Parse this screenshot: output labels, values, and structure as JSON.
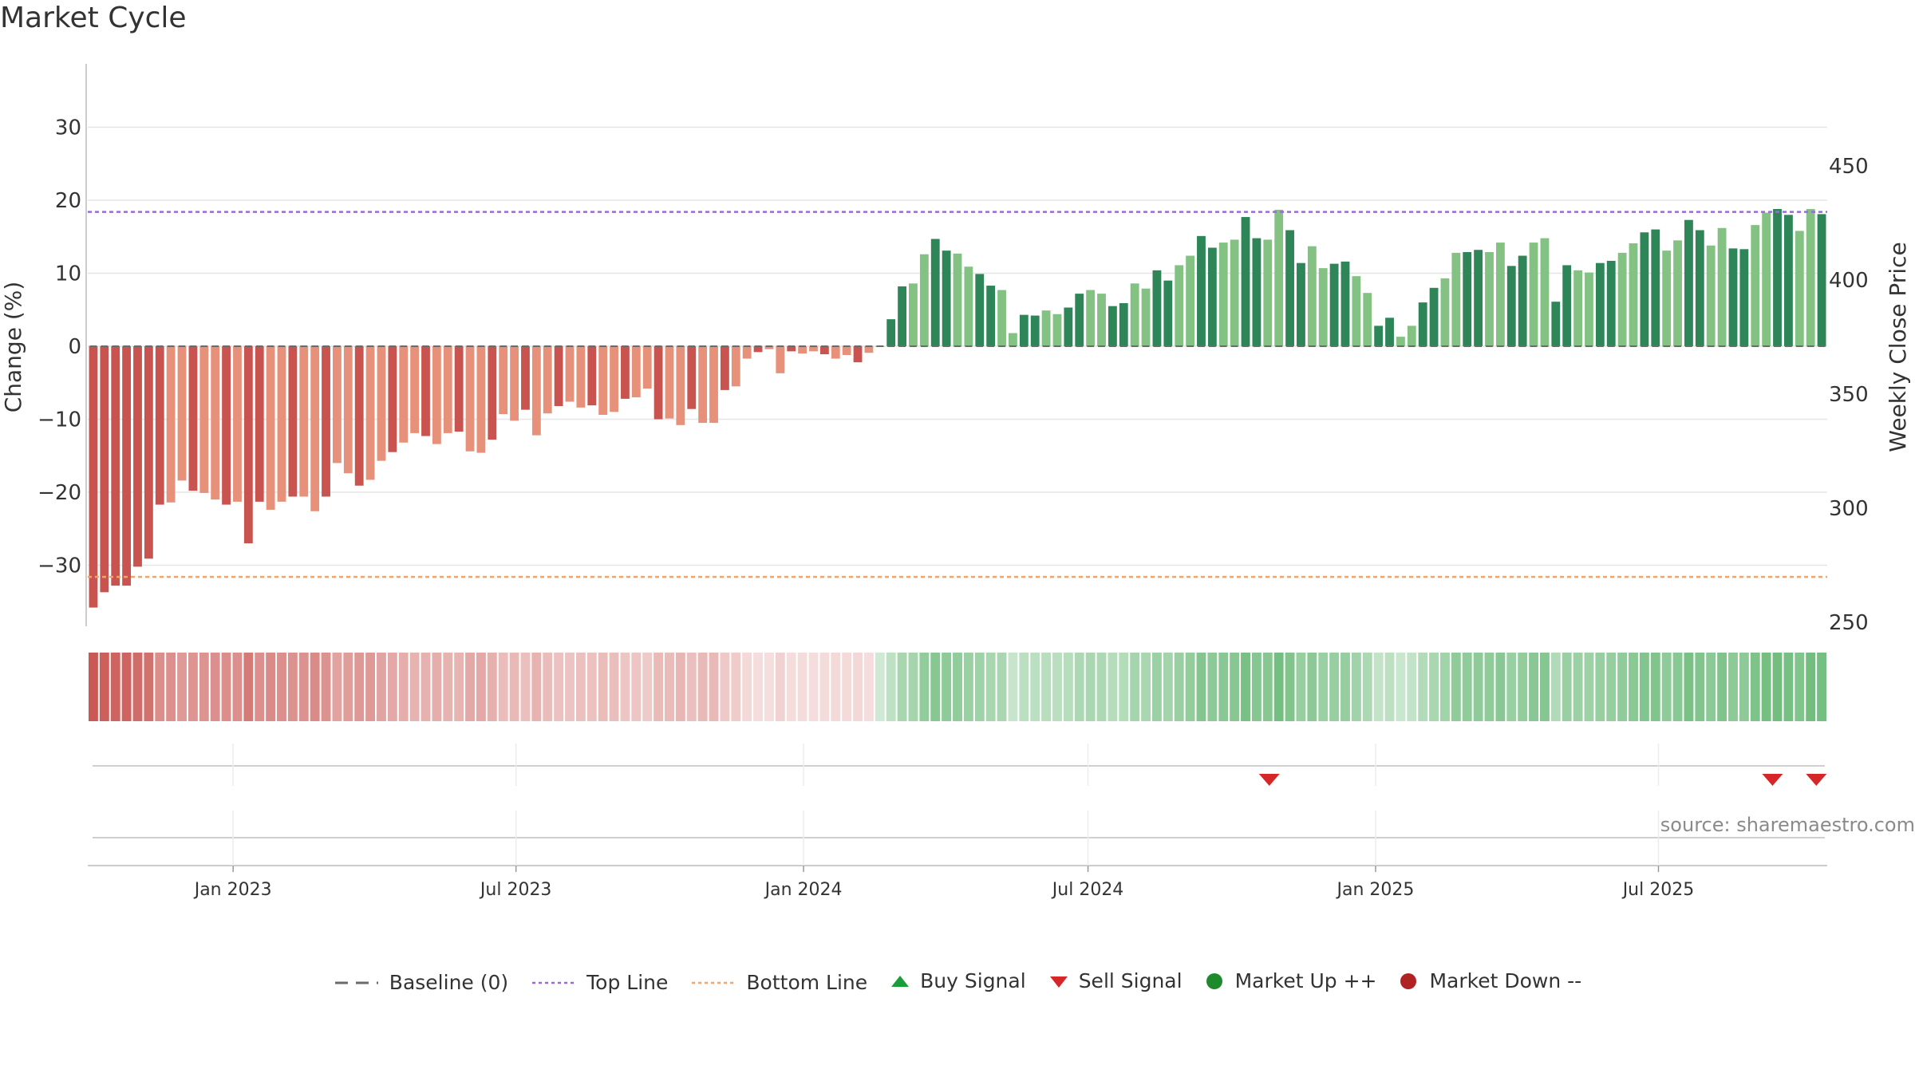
{
  "title": "Market Cycle",
  "source_text": "source: sharemaestro.com",
  "colors": {
    "down_dark": "#c9544f",
    "down_light": "#e8917a",
    "up_dark": "#2e8557",
    "up_light": "#84c283",
    "top_line": "#9b6ad6",
    "bottom_line": "#f0a46a",
    "baseline": "#6b6b6b",
    "buy": "#1a9e3a",
    "sell": "#d62728",
    "market_up": "#1f8a2b",
    "market_down": "#b22222"
  },
  "legend": [
    {
      "label": "Baseline (0)",
      "symbol": "dash",
      "color": "#6b6b6b"
    },
    {
      "label": "Top Line",
      "symbol": "dot",
      "color": "#9b6ad6"
    },
    {
      "label": "Bottom Line",
      "symbol": "dot",
      "color": "#f0a46a"
    },
    {
      "label": "Buy Signal",
      "symbol": "triangle-up",
      "color": "#1a9e3a"
    },
    {
      "label": "Sell Signal",
      "symbol": "triangle-down",
      "color": "#d62728"
    },
    {
      "label": "Market Up ++",
      "symbol": "circle",
      "color": "#1f8a2b"
    },
    {
      "label": "Market Down --",
      "symbol": "circle",
      "color": "#b22222"
    }
  ],
  "chart_data": {
    "type": "bar",
    "ylabel": "Change (%)",
    "y2label": "Weekly Close Price",
    "ylim": [
      -39,
      39
    ],
    "yticks": [
      30,
      20,
      10,
      0,
      -10,
      -20,
      -30
    ],
    "y2ticks": [
      450,
      400,
      350,
      300,
      250
    ],
    "top_line": 18.4,
    "bottom_line": -31.6,
    "x_start": "2022-09-30",
    "x_end": "2025-10-17",
    "xticks": [
      {
        "date": "2023-01-01",
        "label": "Jan 2023"
      },
      {
        "date": "2023-07-01",
        "label": "Jul 2023"
      },
      {
        "date": "2024-01-01",
        "label": "Jan 2024"
      },
      {
        "date": "2024-07-01",
        "label": "Jul 2024"
      },
      {
        "date": "2025-01-01",
        "label": "Jan 2025"
      },
      {
        "date": "2025-07-01",
        "label": "Jul 2025"
      }
    ],
    "values": [
      -35.8,
      -33.7,
      -32.8,
      -32.8,
      -30.2,
      -29.1,
      -21.7,
      -21.4,
      -18.4,
      -19.8,
      -20.1,
      -21.0,
      -21.7,
      -21.3,
      -27.0,
      -21.3,
      -22.4,
      -21.3,
      -20.6,
      -20.6,
      -22.6,
      -20.6,
      -16.0,
      -17.4,
      -19.1,
      -18.3,
      -15.7,
      -14.5,
      -13.2,
      -11.9,
      -12.3,
      -13.4,
      -11.9,
      -11.7,
      -14.4,
      -14.6,
      -12.8,
      -9.3,
      -10.2,
      -8.7,
      -12.2,
      -9.2,
      -8.2,
      -7.6,
      -8.4,
      -8.1,
      -9.4,
      -9.0,
      -7.2,
      -7.0,
      -5.8,
      -10.0,
      -9.9,
      -10.8,
      -8.6,
      -10.5,
      -10.5,
      -6.0,
      -5.5,
      -1.7,
      -0.8,
      -0.4,
      -3.7,
      -0.7,
      -1.0,
      -0.7,
      -1.1,
      -1.7,
      -1.2,
      -2.2,
      -0.9,
      0.0,
      3.7,
      8.2,
      8.6,
      12.6,
      14.7,
      13.1,
      12.7,
      10.9,
      9.9,
      8.3,
      7.7,
      1.8,
      4.3,
      4.2,
      4.9,
      4.4,
      5.3,
      7.2,
      7.7,
      7.2,
      5.5,
      5.9,
      8.6,
      7.9,
      10.4,
      9.0,
      11.1,
      12.4,
      15.1,
      13.5,
      14.2,
      14.6,
      17.7,
      14.8,
      14.6,
      18.7,
      15.9,
      11.4,
      13.7,
      10.7,
      11.3,
      11.6,
      9.6,
      7.3,
      2.8,
      3.9,
      1.3,
      2.8,
      6.0,
      8.0,
      9.3,
      12.8,
      12.9,
      13.2,
      12.9,
      14.2,
      11.0,
      12.4,
      14.2,
      14.8,
      6.1,
      11.1,
      10.4,
      10.1,
      11.4,
      11.7,
      12.8,
      14.1,
      15.6,
      16.0,
      13.1,
      14.5,
      17.3,
      15.9,
      13.8,
      16.2,
      13.4,
      13.3,
      16.6,
      18.3,
      18.8,
      18.0,
      15.8,
      18.8,
      18.1
    ],
    "sell_signals": [
      "2024-10-25",
      "2025-09-12",
      "2025-10-10"
    ]
  }
}
